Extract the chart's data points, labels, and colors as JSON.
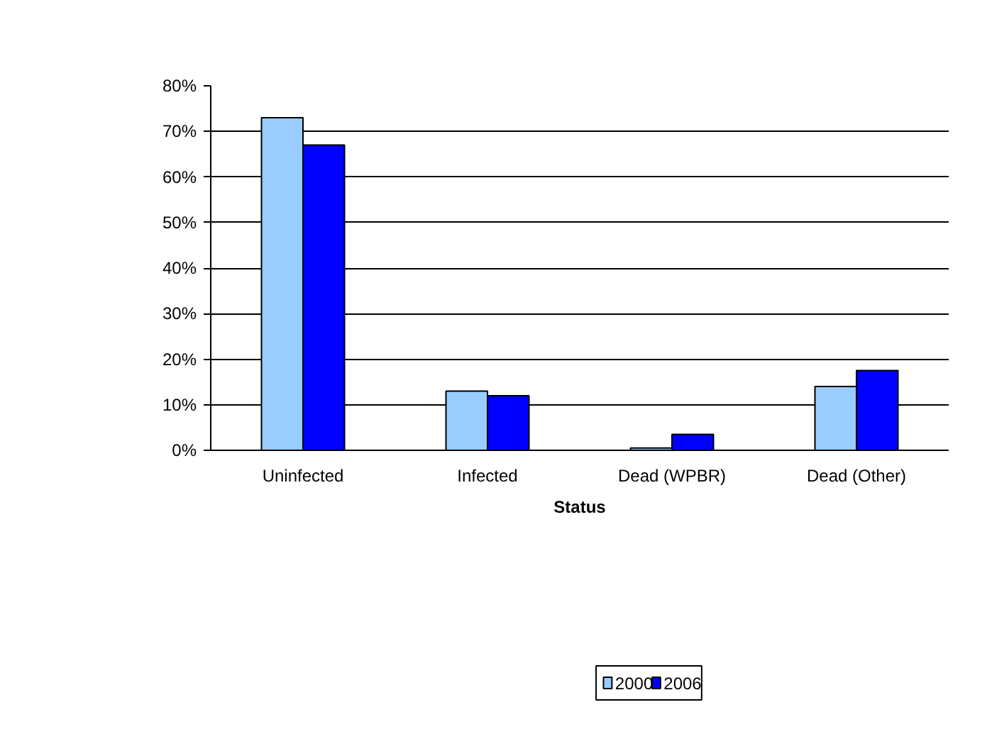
{
  "chart_data": {
    "type": "bar",
    "xlabel": "Status",
    "categories": [
      "Uninfected",
      "Infected",
      "Dead (WPBR)",
      "Dead (Other)"
    ],
    "series": [
      {
        "name": "2000",
        "color": "#99ccff",
        "values": [
          73,
          13,
          0.5,
          14
        ]
      },
      {
        "name": "2006",
        "color": "#0000ff",
        "values": [
          67,
          12,
          3.5,
          17.5
        ]
      }
    ],
    "ylim": [
      0,
      80
    ],
    "yticks": [
      {
        "value": 0,
        "label": "0%"
      },
      {
        "value": 10,
        "label": "10%"
      },
      {
        "value": 20,
        "label": "20%"
      },
      {
        "value": 30,
        "label": "30%"
      },
      {
        "value": 40,
        "label": "40%"
      },
      {
        "value": 50,
        "label": "50%"
      },
      {
        "value": 60,
        "label": "60%"
      },
      {
        "value": 70,
        "label": "70%"
      },
      {
        "value": 80,
        "label": "80%"
      }
    ],
    "grid": "y",
    "legend": "bottom"
  }
}
